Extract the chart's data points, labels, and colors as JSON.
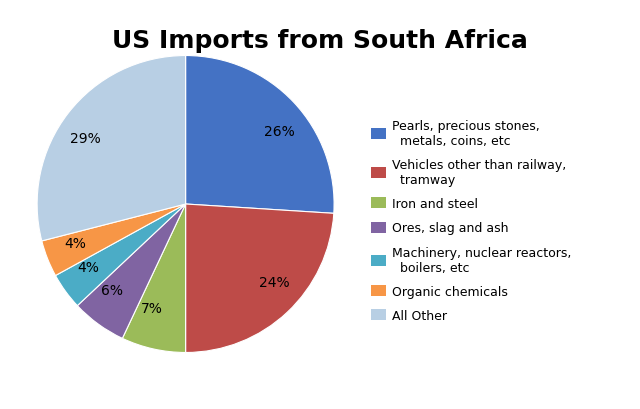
{
  "title": "US Imports from South Africa",
  "title_fontsize": 18,
  "title_fontweight": "bold",
  "slices": [
    26,
    24,
    7,
    6,
    4,
    4,
    29
  ],
  "pct_labels": [
    "26%",
    "24%",
    "7%",
    "6%",
    "4%",
    "4%",
    "29%"
  ],
  "colors": [
    "#4472C4",
    "#BE4B48",
    "#9BBB59",
    "#8064A2",
    "#4BACC6",
    "#F79646",
    "#B8CFE4"
  ],
  "legend_labels": [
    "Pearls, precious stones,\n  metals, coins, etc",
    "Vehicles other than railway,\n  tramway",
    "Iron and steel",
    "Ores, slag and ash",
    "Machinery, nuclear reactors,\n  boilers, etc",
    "Organic chemicals",
    "All Other"
  ],
  "startangle": 90,
  "pct_distance": 0.72,
  "legend_fontsize": 9,
  "legend_labelspacing": 0.9
}
